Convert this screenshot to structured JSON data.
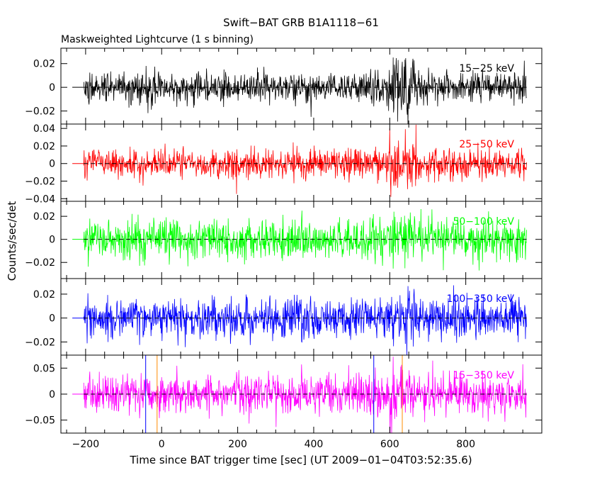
{
  "chart_data": {
    "type": "line",
    "title": "Swift−BAT GRB B1A1118−61",
    "subtitle": "Maskweighted Lightcurve (1 s binning)",
    "xlabel": "Time since BAT trigger time [sec] (UT 2009−01−04T03:52:35.6)",
    "ylabel": "Counts/sec/det",
    "xlim": [
      -265,
      1000
    ],
    "x_ticks": [
      -200,
      0,
      200,
      400,
      600,
      800
    ],
    "x_tick_labels": [
      "−200",
      "0",
      "200",
      "400",
      "600",
      "800"
    ],
    "data_range": [
      -205,
      960
    ],
    "bin_seconds": 1,
    "zero_line": "dashed",
    "vertical_markers": [
      {
        "x": -42,
        "color": "#0000ff"
      },
      {
        "x": -12,
        "color": "#ff8c00"
      },
      {
        "x": 558,
        "color": "#0000ff"
      },
      {
        "x": 633,
        "color": "#ff8c00"
      }
    ],
    "series": [
      {
        "name": "15−25 keV",
        "color": "#000000",
        "ylim": [
          -0.031,
          0.033
        ],
        "y_ticks": [
          -0.02,
          0,
          0.02
        ],
        "y_tick_labels": [
          "−0.02",
          "0",
          "0.02"
        ],
        "noise_sigma": 0.0065,
        "burst": {
          "start": 600,
          "end": 670,
          "sigma": 0.013
        }
      },
      {
        "name": "25−50 keV",
        "color": "#ff0000",
        "ylim": [
          -0.043,
          0.045
        ],
        "y_ticks": [
          -0.04,
          -0.02,
          0,
          0.02,
          0.04
        ],
        "y_tick_labels": [
          "−0.04",
          "−0.02",
          "0",
          "0.02",
          "0.04"
        ],
        "noise_sigma": 0.0085,
        "burst": {
          "start": 600,
          "end": 670,
          "sigma": 0.016
        }
      },
      {
        "name": "50−100 keV",
        "color": "#00ff00",
        "ylim": [
          -0.034,
          0.033
        ],
        "y_ticks": [
          -0.02,
          0,
          0.02
        ],
        "y_tick_labels": [
          "−0.02",
          "0",
          "0.02"
        ],
        "noise_sigma": 0.0085,
        "burst": {
          "start": 600,
          "end": 670,
          "sigma": 0.012
        }
      },
      {
        "name": "100−350 keV",
        "color": "#0000ff",
        "ylim": [
          -0.031,
          0.033
        ],
        "y_ticks": [
          -0.02,
          0,
          0.02
        ],
        "y_tick_labels": [
          "−0.02",
          "0",
          "0.02"
        ],
        "noise_sigma": 0.0085,
        "burst": {
          "start": 600,
          "end": 670,
          "sigma": 0.012
        }
      },
      {
        "name": "15−350 keV",
        "color": "#ff00ff",
        "ylim": [
          -0.075,
          0.075
        ],
        "y_ticks": [
          -0.05,
          0,
          0.05
        ],
        "y_tick_labels": [
          "−0.05",
          "0",
          "0.05"
        ],
        "noise_sigma": 0.019,
        "burst": {
          "start": 600,
          "end": 670,
          "sigma": 0.03
        }
      }
    ]
  }
}
